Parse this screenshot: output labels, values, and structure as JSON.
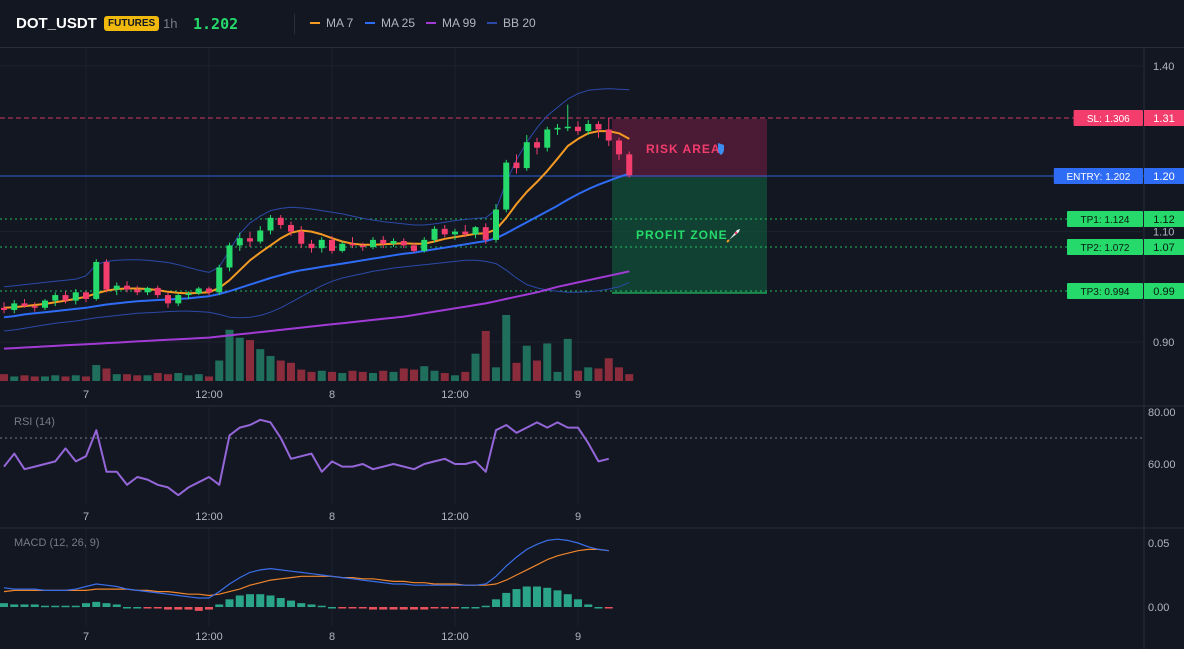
{
  "header": {
    "symbol": "DOT_USDT",
    "badge": "FUTURES",
    "timeframe": "1h",
    "price": "1.202",
    "legend": [
      {
        "label": "MA 7",
        "color": "#f59a23"
      },
      {
        "label": "MA 25",
        "color": "#2f6cf6"
      },
      {
        "label": "MA 99",
        "color": "#a23bd6"
      },
      {
        "label": "BB 20",
        "color": "#2b4aa8"
      }
    ]
  },
  "colors": {
    "up": "#26d96b",
    "down": "#f23d6d",
    "vol_up": "#1f6f5c",
    "vol_down": "#8a2c3b",
    "ma7": "#f59a23",
    "ma25": "#2f6cf6",
    "ma99": "#a23bd6",
    "bb": "#2b4aa8",
    "rsi": "#9466d8",
    "macd": "#3a6ee8",
    "signal": "#f0852b"
  },
  "chart_data": [
    {
      "type": "candlestick",
      "title": "",
      "x_ticks": [
        "7",
        "12:00",
        "8",
        "12:00",
        "9"
      ],
      "x_tick_index": [
        8,
        20,
        32,
        44,
        56
      ],
      "y_ticks": [
        "1.40",
        "1.10",
        "0.90"
      ],
      "y_tick_values": [
        1.4,
        1.1,
        0.9
      ],
      "ylim": [
        0.83,
        1.44
      ],
      "candles": [
        [
          0.962,
          0.972,
          0.952,
          0.958
        ],
        [
          0.958,
          0.976,
          0.952,
          0.97
        ],
        [
          0.97,
          0.978,
          0.962,
          0.965
        ],
        [
          0.965,
          0.972,
          0.955,
          0.962
        ],
        [
          0.962,
          0.978,
          0.958,
          0.975
        ],
        [
          0.975,
          0.99,
          0.965,
          0.985
        ],
        [
          0.985,
          0.992,
          0.97,
          0.975
        ],
        [
          0.975,
          0.996,
          0.968,
          0.99
        ],
        [
          0.99,
          0.992,
          0.972,
          0.978
        ],
        [
          0.978,
          1.05,
          0.975,
          1.045
        ],
        [
          1.045,
          1.05,
          0.99,
          0.995
        ],
        [
          0.995,
          1.008,
          0.985,
          1.002
        ],
        [
          1.002,
          1.01,
          0.99,
          0.995
        ],
        [
          0.995,
          1.002,
          0.985,
          0.99
        ],
        [
          0.99,
          1.0,
          0.985,
          0.998
        ],
        [
          0.998,
          1.002,
          0.98,
          0.985
        ],
        [
          0.985,
          0.99,
          0.962,
          0.97
        ],
        [
          0.97,
          0.988,
          0.965,
          0.985
        ],
        [
          0.985,
          0.992,
          0.978,
          0.988
        ],
        [
          0.988,
          1.0,
          0.985,
          0.997
        ],
        [
          0.997,
          1.0,
          0.985,
          0.99
        ],
        [
          0.99,
          1.04,
          0.985,
          1.035
        ],
        [
          1.035,
          1.08,
          1.028,
          1.075
        ],
        [
          1.075,
          1.098,
          1.065,
          1.088
        ],
        [
          1.088,
          1.1,
          1.072,
          1.082
        ],
        [
          1.082,
          1.11,
          1.078,
          1.102
        ],
        [
          1.102,
          1.13,
          1.095,
          1.125
        ],
        [
          1.125,
          1.13,
          1.105,
          1.112
        ],
        [
          1.112,
          1.118,
          1.092,
          1.1
        ],
        [
          1.1,
          1.11,
          1.07,
          1.078
        ],
        [
          1.078,
          1.085,
          1.062,
          1.07
        ],
        [
          1.07,
          1.09,
          1.062,
          1.085
        ],
        [
          1.085,
          1.092,
          1.06,
          1.065
        ],
        [
          1.065,
          1.082,
          1.062,
          1.078
        ],
        [
          1.078,
          1.09,
          1.07,
          1.075
        ],
        [
          1.075,
          1.08,
          1.065,
          1.072
        ],
        [
          1.072,
          1.09,
          1.068,
          1.085
        ],
        [
          1.085,
          1.092,
          1.07,
          1.078
        ],
        [
          1.078,
          1.088,
          1.072,
          1.083
        ],
        [
          1.083,
          1.088,
          1.07,
          1.075
        ],
        [
          1.075,
          1.08,
          1.062,
          1.065
        ],
        [
          1.065,
          1.09,
          1.062,
          1.085
        ],
        [
          1.085,
          1.11,
          1.08,
          1.105
        ],
        [
          1.105,
          1.112,
          1.09,
          1.095
        ],
        [
          1.095,
          1.105,
          1.085,
          1.1
        ],
        [
          1.1,
          1.112,
          1.09,
          1.095
        ],
        [
          1.095,
          1.11,
          1.088,
          1.108
        ],
        [
          1.108,
          1.115,
          1.078,
          1.085
        ],
        [
          1.085,
          1.15,
          1.08,
          1.14
        ],
        [
          1.14,
          1.23,
          1.135,
          1.225
        ],
        [
          1.225,
          1.24,
          1.205,
          1.215
        ],
        [
          1.215,
          1.275,
          1.21,
          1.262
        ],
        [
          1.262,
          1.27,
          1.24,
          1.252
        ],
        [
          1.252,
          1.29,
          1.245,
          1.285
        ],
        [
          1.285,
          1.295,
          1.275,
          1.288
        ],
        [
          1.288,
          1.33,
          1.282,
          1.29
        ],
        [
          1.29,
          1.3,
          1.275,
          1.282
        ],
        [
          1.282,
          1.302,
          1.275,
          1.295
        ],
        [
          1.295,
          1.3,
          1.27,
          1.285
        ],
        [
          1.285,
          1.305,
          1.255,
          1.265
        ],
        [
          1.265,
          1.27,
          1.23,
          1.24
        ],
        [
          1.24,
          1.245,
          1.198,
          1.202
        ]
      ],
      "volume": [
        6,
        4,
        5,
        4,
        4,
        5,
        4,
        5,
        4,
        14,
        11,
        6,
        6,
        5,
        5,
        7,
        6,
        7,
        5,
        6,
        4,
        18,
        45,
        38,
        36,
        28,
        22,
        18,
        16,
        10,
        8,
        9,
        8,
        7,
        9,
        8,
        7,
        9,
        8,
        11,
        10,
        13,
        9,
        7,
        5,
        8,
        24,
        44,
        12,
        58,
        16,
        31,
        18,
        33,
        8,
        37,
        9,
        12,
        11,
        20,
        12,
        6
      ],
      "ma7_start": 0.958,
      "ma7": [
        0.962,
        0.963,
        0.965,
        0.967,
        0.969,
        0.972,
        0.975,
        0.978,
        0.982,
        0.988,
        0.993,
        0.996,
        0.997,
        0.997,
        0.996,
        0.994,
        0.991,
        0.989,
        0.988,
        0.989,
        0.99,
        0.998,
        1.012,
        1.03,
        1.048,
        1.062,
        1.075,
        1.088,
        1.098,
        1.102,
        1.1,
        1.095,
        1.088,
        1.082,
        1.078,
        1.076,
        1.076,
        1.077,
        1.078,
        1.079,
        1.078,
        1.078,
        1.082,
        1.087,
        1.09,
        1.093,
        1.096,
        1.097,
        1.104,
        1.125,
        1.15,
        1.172,
        1.19,
        1.21,
        1.232,
        1.255,
        1.268,
        1.278,
        1.282,
        1.282,
        1.278,
        1.268
      ],
      "ma25": [
        0.945,
        0.947,
        0.95,
        0.952,
        0.954,
        0.956,
        0.958,
        0.96,
        0.962,
        0.965,
        0.968,
        0.97,
        0.972,
        0.974,
        0.975,
        0.976,
        0.977,
        0.978,
        0.979,
        0.981,
        0.983,
        0.987,
        0.992,
        0.998,
        1.004,
        1.01,
        1.016,
        1.021,
        1.026,
        1.03,
        1.033,
        1.036,
        1.039,
        1.042,
        1.045,
        1.048,
        1.051,
        1.054,
        1.057,
        1.06,
        1.062,
        1.065,
        1.068,
        1.071,
        1.074,
        1.077,
        1.08,
        1.083,
        1.088,
        1.097,
        1.107,
        1.117,
        1.127,
        1.137,
        1.147,
        1.158,
        1.168,
        1.177,
        1.185,
        1.192,
        1.199,
        1.205
      ],
      "ma99": [
        0.888,
        0.889,
        0.89,
        0.891,
        0.892,
        0.893,
        0.894,
        0.895,
        0.896,
        0.897,
        0.898,
        0.899,
        0.9,
        0.901,
        0.902,
        0.903,
        0.904,
        0.905,
        0.906,
        0.907,
        0.908,
        0.91,
        0.912,
        0.914,
        0.916,
        0.918,
        0.92,
        0.922,
        0.924,
        0.926,
        0.928,
        0.93,
        0.932,
        0.934,
        0.936,
        0.938,
        0.94,
        0.942,
        0.944,
        0.946,
        0.949,
        0.952,
        0.955,
        0.958,
        0.961,
        0.964,
        0.967,
        0.97,
        0.974,
        0.978,
        0.982,
        0.986,
        0.99,
        0.995,
        1.0,
        1.004,
        1.008,
        1.012,
        1.016,
        1.02,
        1.024,
        1.028
      ],
      "bb_upper": [
        1.0,
        1.002,
        1.004,
        1.006,
        1.008,
        1.01,
        1.012,
        1.014,
        1.02,
        1.04,
        1.046,
        1.048,
        1.049,
        1.049,
        1.048,
        1.046,
        1.044,
        1.04,
        1.035,
        1.03,
        1.026,
        1.036,
        1.066,
        1.096,
        1.116,
        1.128,
        1.138,
        1.142,
        1.144,
        1.143,
        1.141,
        1.138,
        1.135,
        1.132,
        1.128,
        1.124,
        1.121,
        1.118,
        1.116,
        1.114,
        1.112,
        1.112,
        1.114,
        1.117,
        1.12,
        1.122,
        1.124,
        1.125,
        1.14,
        1.19,
        1.23,
        1.262,
        1.288,
        1.31,
        1.325,
        1.34,
        1.35,
        1.356,
        1.358,
        1.359,
        1.358,
        1.357
      ],
      "bb_lower": [
        0.92,
        0.922,
        0.925,
        0.928,
        0.931,
        0.934,
        0.936,
        0.938,
        0.941,
        0.944,
        0.946,
        0.948,
        0.95,
        0.952,
        0.953,
        0.954,
        0.955,
        0.956,
        0.956,
        0.955,
        0.954,
        0.95,
        0.945,
        0.944,
        0.945,
        0.948,
        0.954,
        0.962,
        0.972,
        0.982,
        0.992,
        1.002,
        1.01,
        1.016,
        1.02,
        1.024,
        1.028,
        1.031,
        1.034,
        1.036,
        1.038,
        1.04,
        1.042,
        1.044,
        1.046,
        1.048,
        1.048,
        1.046,
        1.042,
        1.03,
        1.016,
        1.004,
        0.998,
        0.994,
        0.992,
        0.99,
        0.99,
        0.991,
        0.993,
        0.996,
        1.0,
        1.008
      ]
    },
    {
      "type": "line",
      "name": "RSI (14)",
      "y_ticks": [
        "80.00",
        "60.00"
      ],
      "y_tick_values": [
        80,
        60
      ],
      "ylim": [
        46,
        82
      ],
      "overbought": 70,
      "x_ticks": [
        "7",
        "12:00",
        "8",
        "12:00",
        "9"
      ],
      "values": [
        59,
        64,
        58,
        59,
        60,
        61,
        66,
        61,
        63,
        73,
        57,
        57,
        52,
        55,
        54,
        52,
        51,
        48,
        51,
        53,
        55,
        52,
        71,
        74,
        75,
        77,
        76,
        70,
        62,
        63,
        64,
        57,
        61,
        59,
        59,
        60,
        58,
        59,
        60,
        59,
        58,
        60,
        61,
        62,
        60,
        60,
        61,
        57,
        73,
        75,
        72,
        74,
        76,
        74,
        76,
        74,
        74,
        68,
        61,
        62
      ]
    },
    {
      "type": "line",
      "name": "MACD (12, 26, 9)",
      "y_ticks": [
        "0.05",
        "0.00"
      ],
      "y_tick_values": [
        0.05,
        0.0
      ],
      "ylim": [
        -0.012,
        0.058
      ],
      "x_ticks": [
        "7",
        "12:00",
        "8",
        "12:00",
        "9"
      ],
      "macd": [
        0.015,
        0.014,
        0.014,
        0.014,
        0.013,
        0.013,
        0.013,
        0.014,
        0.016,
        0.018,
        0.017,
        0.016,
        0.014,
        0.013,
        0.012,
        0.011,
        0.01,
        0.009,
        0.008,
        0.007,
        0.007,
        0.012,
        0.018,
        0.023,
        0.027,
        0.029,
        0.03,
        0.029,
        0.028,
        0.027,
        0.026,
        0.025,
        0.024,
        0.023,
        0.022,
        0.021,
        0.02,
        0.019,
        0.018,
        0.018,
        0.017,
        0.017,
        0.017,
        0.017,
        0.017,
        0.017,
        0.017,
        0.018,
        0.024,
        0.032,
        0.039,
        0.045,
        0.049,
        0.052,
        0.053,
        0.052,
        0.05,
        0.047,
        0.045,
        0.044
      ],
      "signal": [
        0.012,
        0.013,
        0.013,
        0.013,
        0.013,
        0.013,
        0.013,
        0.013,
        0.013,
        0.014,
        0.014,
        0.014,
        0.014,
        0.013,
        0.013,
        0.012,
        0.012,
        0.011,
        0.01,
        0.01,
        0.009,
        0.01,
        0.012,
        0.014,
        0.017,
        0.019,
        0.021,
        0.022,
        0.023,
        0.024,
        0.024,
        0.024,
        0.024,
        0.023,
        0.023,
        0.022,
        0.022,
        0.021,
        0.02,
        0.02,
        0.019,
        0.019,
        0.018,
        0.018,
        0.018,
        0.017,
        0.017,
        0.017,
        0.018,
        0.021,
        0.025,
        0.029,
        0.033,
        0.037,
        0.04,
        0.042,
        0.044,
        0.045,
        0.045,
        0.044
      ],
      "hist": [
        0.003,
        0.002,
        0.002,
        0.002,
        0.001,
        0.001,
        0.001,
        0.001,
        0.003,
        0.004,
        0.003,
        0.002,
        0.0,
        0.0,
        -0.001,
        -0.001,
        -0.002,
        -0.002,
        -0.002,
        -0.003,
        -0.002,
        0.002,
        0.006,
        0.009,
        0.01,
        0.01,
        0.009,
        0.007,
        0.005,
        0.003,
        0.002,
        0.001,
        0.0,
        -0.001,
        -0.001,
        -0.001,
        -0.002,
        -0.002,
        -0.002,
        -0.002,
        -0.002,
        -0.002,
        -0.001,
        -0.001,
        -0.001,
        0.0,
        0.0,
        0.001,
        0.006,
        0.011,
        0.014,
        0.016,
        0.016,
        0.015,
        0.013,
        0.01,
        0.006,
        0.002,
        0.0,
        -0.001
      ]
    }
  ],
  "levels": {
    "sl": {
      "label": "SL: 1.306",
      "value": 1.306,
      "color": "#f23d6d"
    },
    "entry": {
      "label": "ENTRY: 1.202",
      "value": 1.202,
      "color": "#2f6cf6"
    },
    "tp1": {
      "label": "TP1: 1.124",
      "value": 1.124,
      "color": "#26d96b"
    },
    "tp2": {
      "label": "TP2: 1.072",
      "value": 1.072,
      "color": "#26d96b"
    },
    "tp3": {
      "label": "TP3: 0.994",
      "value": 0.994,
      "color": "#26d96b"
    }
  },
  "axis_tags": [
    "1.31",
    "1.20",
    "1.12",
    "1.07",
    "0.99"
  ],
  "zones": {
    "risk_label": "RISK AREA",
    "risk_icon": "shield-icon",
    "profit_label": "PROFIT ZONE",
    "profit_icon": "rocket-icon"
  }
}
